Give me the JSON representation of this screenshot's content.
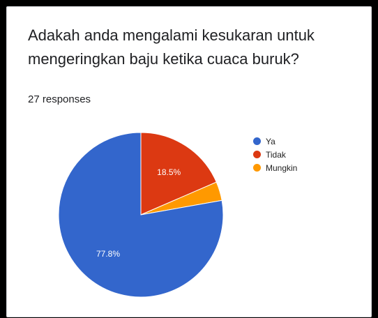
{
  "title": "Adakah anda mengalami kesukaran untuk mengeringkan baju ketika cuaca buruk?",
  "responses": "27 responses",
  "chart_data": {
    "type": "pie",
    "title": "Adakah anda mengalami kesukaran untuk mengeringkan baju ketika cuaca buruk?",
    "categories": [
      "Ya",
      "Tidak",
      "Mungkin"
    ],
    "values": [
      77.8,
      18.5,
      3.7
    ],
    "counts": [
      21,
      5,
      1
    ],
    "data_labels": [
      "77.8%",
      "18.5%",
      ""
    ],
    "colors": [
      "#3366cc",
      "#dc3912",
      "#ff9900"
    ],
    "legend_position": "right"
  }
}
